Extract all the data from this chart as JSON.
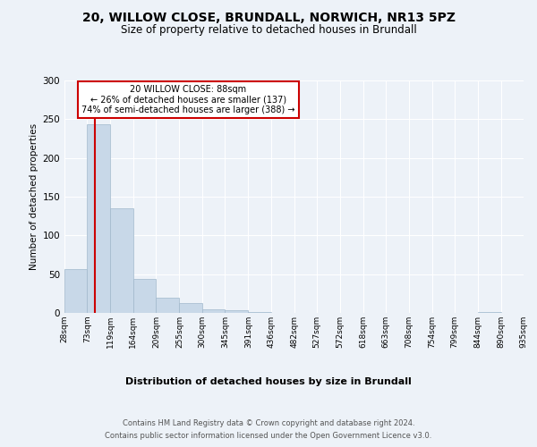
{
  "title": "20, WILLOW CLOSE, BRUNDALL, NORWICH, NR13 5PZ",
  "subtitle": "Size of property relative to detached houses in Brundall",
  "xlabel": "Distribution of detached houses by size in Brundall",
  "ylabel": "Number of detached properties",
  "footer_line1": "Contains HM Land Registry data © Crown copyright and database right 2024.",
  "footer_line2": "Contains public sector information licensed under the Open Government Licence v3.0.",
  "annotation_line1": "20 WILLOW CLOSE: 88sqm",
  "annotation_line2": "← 26% of detached houses are smaller (137)",
  "annotation_line3": "74% of semi-detached houses are larger (388) →",
  "bar_edges": [
    28,
    73,
    119,
    164,
    209,
    255,
    300,
    345,
    391,
    436,
    482,
    527,
    572,
    618,
    663,
    708,
    754,
    799,
    844,
    890,
    935
  ],
  "bar_heights": [
    57,
    243,
    135,
    44,
    20,
    13,
    5,
    4,
    1,
    0,
    0,
    0,
    0,
    0,
    0,
    0,
    0,
    0,
    1,
    0,
    0
  ],
  "bar_color": "#c8d8e8",
  "bar_edgecolor": "#a0b8cc",
  "vline_color": "#cc0000",
  "vline_x": 88,
  "ylim": [
    0,
    300
  ],
  "yticks": [
    0,
    50,
    100,
    150,
    200,
    250,
    300
  ],
  "bg_color": "#edf2f8",
  "grid_color": "#ffffff",
  "annotation_box_edgecolor": "#cc0000",
  "annotation_box_facecolor": "#ffffff"
}
